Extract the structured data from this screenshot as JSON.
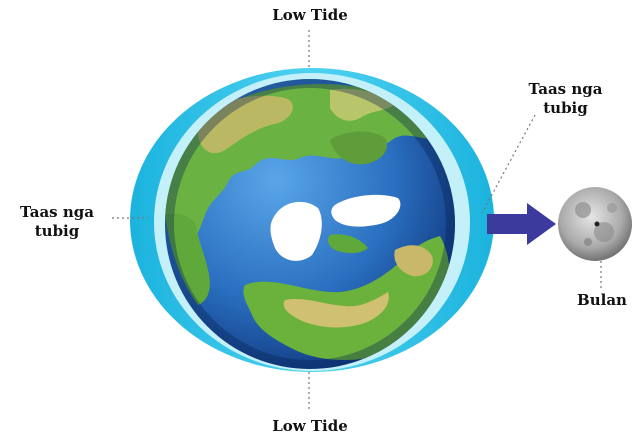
{
  "labels": {
    "low_tide_top": "Low Tide",
    "low_tide_bottom": "Low Tide",
    "high_tide_left": [
      "Taas nga",
      "tubig"
    ],
    "high_tide_right": [
      "Taas nga",
      "tubig"
    ],
    "moon": "Bulan"
  },
  "colors": {
    "water_bulge": "#29c3e6",
    "water_inner": "#bfeff9",
    "ocean": "#2a78c8",
    "ocean_dark": "#0f3e86",
    "land": "#5fa83a",
    "land_dry": "#c9b86a",
    "ice": "#ffffff",
    "arrow": "#3d3a9e",
    "moon": "#b9b9b9",
    "leader_line": "#777777"
  }
}
